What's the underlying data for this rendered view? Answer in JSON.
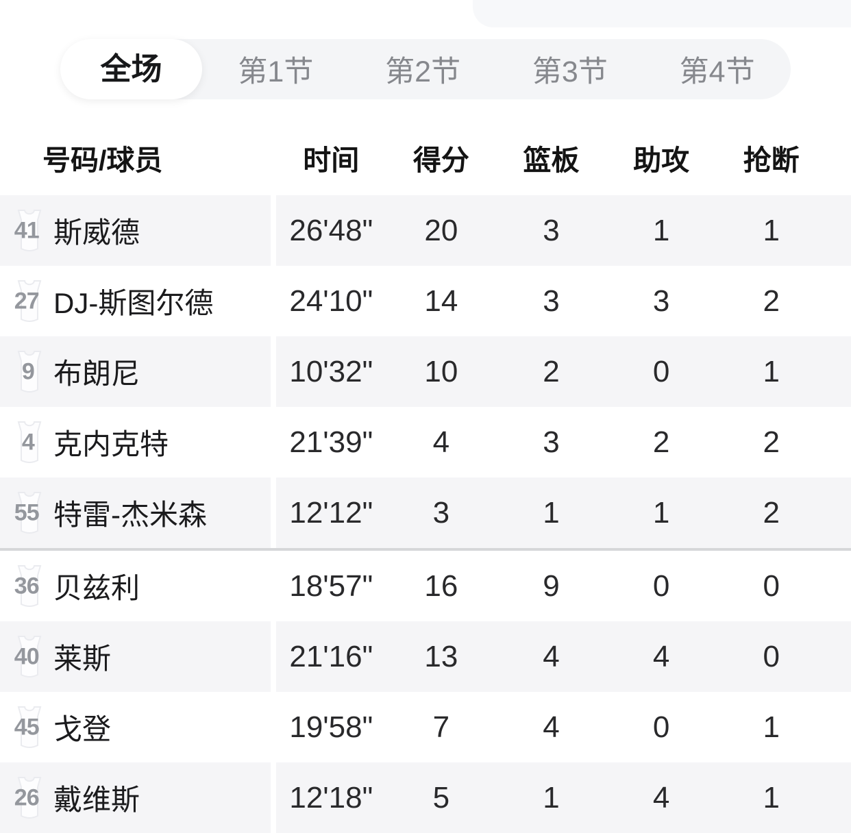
{
  "tabs": {
    "items": [
      {
        "label": "全场",
        "active": true
      },
      {
        "label": "第1节",
        "active": false
      },
      {
        "label": "第2节",
        "active": false
      },
      {
        "label": "第3节",
        "active": false
      },
      {
        "label": "第4节",
        "active": false
      }
    ]
  },
  "table": {
    "columns": [
      "号码/球员",
      "时间",
      "得分",
      "篮板",
      "助攻",
      "抢断"
    ],
    "groups": [
      {
        "rows": [
          {
            "number": "41",
            "name": "斯威德",
            "stats": [
              "26'48\"",
              "20",
              "3",
              "1",
              "1"
            ]
          },
          {
            "number": "27",
            "name": "DJ-斯图尔德",
            "stats": [
              "24'10\"",
              "14",
              "3",
              "3",
              "2"
            ]
          },
          {
            "number": "9",
            "name": "布朗尼",
            "stats": [
              "10'32\"",
              "10",
              "2",
              "0",
              "1"
            ]
          },
          {
            "number": "4",
            "name": "克内克特",
            "stats": [
              "21'39\"",
              "4",
              "3",
              "2",
              "2"
            ]
          },
          {
            "number": "55",
            "name": "特雷-杰米森",
            "stats": [
              "12'12\"",
              "3",
              "1",
              "1",
              "2"
            ]
          }
        ]
      },
      {
        "rows": [
          {
            "number": "36",
            "name": "贝兹利",
            "stats": [
              "18'57\"",
              "16",
              "9",
              "0",
              "0"
            ]
          },
          {
            "number": "40",
            "name": "莱斯",
            "stats": [
              "21'16\"",
              "13",
              "4",
              "4",
              "0"
            ]
          },
          {
            "number": "45",
            "name": "戈登",
            "stats": [
              "19'58\"",
              "7",
              "4",
              "0",
              "1"
            ]
          },
          {
            "number": "26",
            "name": "戴维斯",
            "stats": [
              "12'18\"",
              "5",
              "1",
              "4",
              "1"
            ]
          }
        ]
      }
    ]
  },
  "colors": {
    "row_shade": "#f5f5f7",
    "tabbar_bg": "#f4f5f7",
    "active_tab_text": "#17181a",
    "inactive_tab_text": "#86888d",
    "cell_text": "#29292b",
    "jersey_number": "#94979d",
    "divider": "#d6d7d9"
  }
}
